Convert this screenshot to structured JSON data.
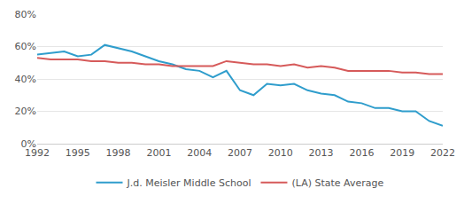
{
  "chart_data": {
    "type": "line",
    "x": [
      1992,
      1993,
      1994,
      1995,
      1996,
      1997,
      1998,
      1999,
      2000,
      2001,
      2002,
      2003,
      2004,
      2005,
      2006,
      2007,
      2008,
      2009,
      2010,
      2011,
      2012,
      2013,
      2014,
      2015,
      2016,
      2017,
      2018,
      2019,
      2020,
      2021,
      2022
    ],
    "series": [
      {
        "name": "J.d. Meisler Middle School",
        "color": "#2f9dcc",
        "values": [
          55,
          56,
          57,
          54,
          55,
          61,
          59,
          57,
          54,
          51,
          49,
          46,
          45,
          41,
          45,
          33,
          30,
          37,
          36,
          37,
          33,
          31,
          30,
          26,
          25,
          22,
          22,
          20,
          20,
          14,
          11
        ]
      },
      {
        "name": "(LA) State Average",
        "color": "#d65a5a",
        "values": [
          53,
          52,
          52,
          52,
          51,
          51,
          50,
          50,
          49,
          49,
          48,
          48,
          48,
          48,
          51,
          50,
          49,
          49,
          48,
          49,
          47,
          48,
          47,
          45,
          45,
          45,
          45,
          44,
          44,
          43,
          43
        ]
      }
    ],
    "xlim": [
      1992,
      2022
    ],
    "xticks": [
      1992,
      1995,
      1998,
      2001,
      2004,
      2007,
      2010,
      2013,
      2016,
      2019,
      2022
    ],
    "ylim": [
      0,
      80
    ],
    "yticks": [
      {
        "value": 0,
        "label": "0%"
      },
      {
        "value": 20,
        "label": "20%"
      },
      {
        "value": 40,
        "label": "40%"
      },
      {
        "value": 60,
        "label": "60%"
      },
      {
        "value": 80,
        "label": "80%"
      }
    ],
    "grid": true,
    "legend": "bottom"
  }
}
